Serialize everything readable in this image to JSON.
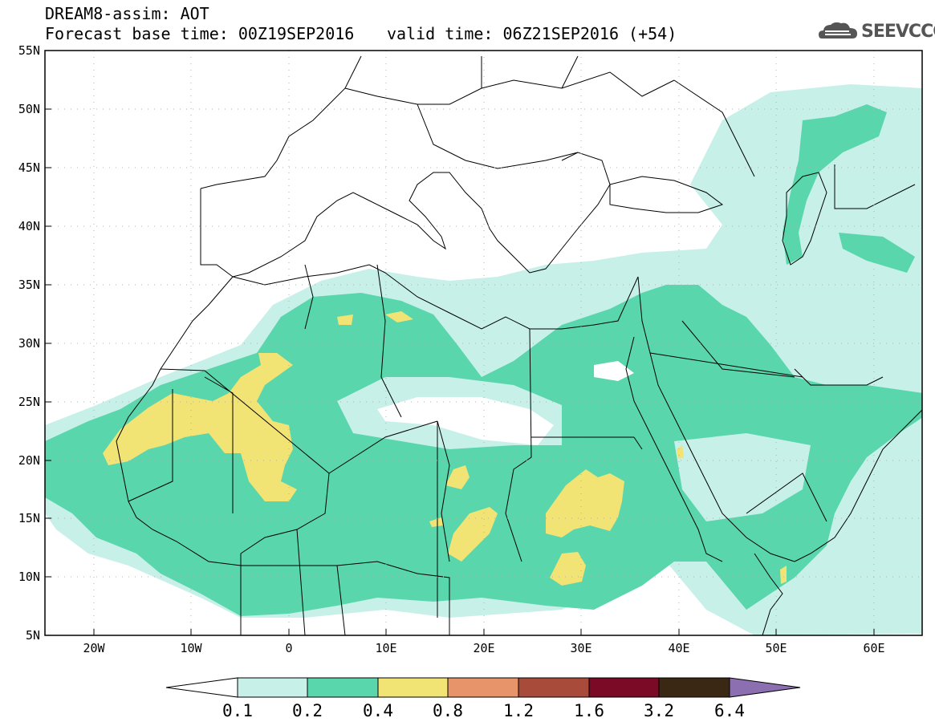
{
  "title_line1": "DREAM8-assim: AOT",
  "title_line2_base": "Forecast base time: 00Z19SEP2016",
  "title_line2_valid": "valid time: 06Z21SEP2016 (+54)",
  "logo_text": "SEEVCCC",
  "logo_icon": "cloud-logo-icon",
  "map": {
    "lon_range": [
      -25,
      65
    ],
    "lat_range": [
      5,
      55
    ],
    "lat_ticks": [
      "55N",
      "50N",
      "45N",
      "40N",
      "35N",
      "30N",
      "25N",
      "20N",
      "15N",
      "10N",
      "5N"
    ],
    "lon_ticks": [
      "20W",
      "10W",
      "0",
      "10E",
      "20E",
      "30E",
      "40E",
      "50E",
      "60E"
    ],
    "grid": "dotted"
  },
  "colorbar": {
    "labels": [
      "0.1",
      "0.2",
      "0.4",
      "0.8",
      "1.2",
      "1.6",
      "3.2",
      "6.4"
    ],
    "colors": {
      "below": "#ffffff",
      "c1": "#c7f0e8",
      "c2": "#5ad6ac",
      "c3": "#f2e375",
      "c4": "#e8946a",
      "c5": "#a84b3a",
      "c6": "#7a0a25",
      "c7": "#3b2814",
      "above": "#8c6fb0"
    }
  }
}
